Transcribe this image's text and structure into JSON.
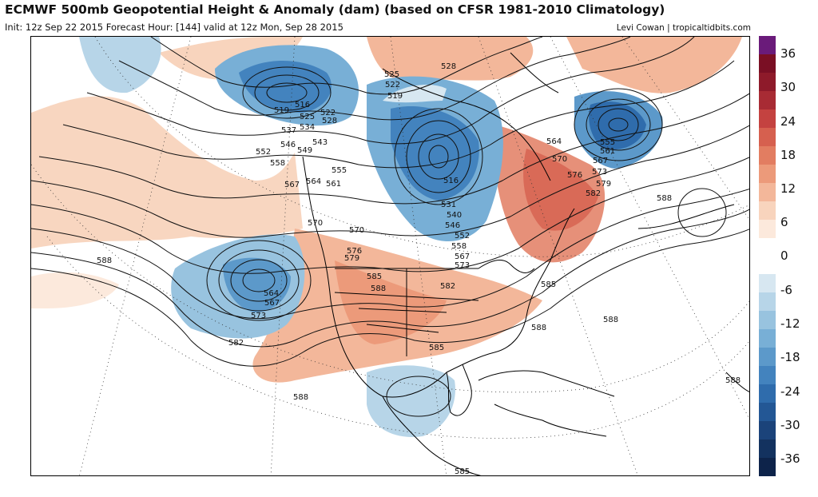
{
  "header": {
    "title": "ECMWF 500mb Geopotential Height & Anomaly (dam) (based on CFSR 1981-2010 Climatology)",
    "subtitle": "Init: 12z Sep 22 2015   Forecast Hour: [144]   valid at 12z Mon, Sep 28 2015",
    "credit": "Levi Cowan | tropicaltidbits.com"
  },
  "colorbar": {
    "labels": [
      "36",
      "30",
      "24",
      "18",
      "12",
      "6",
      "0",
      "-6",
      "-12",
      "-18",
      "-24",
      "-30",
      "-36"
    ],
    "colors": [
      "#6a1b7a",
      "#7a0f24",
      "#8e1a2a",
      "#a82b34",
      "#c44240",
      "#d6604f",
      "#e27d61",
      "#ec9a7a",
      "#f3b79a",
      "#f8d4bd",
      "#fce9dc",
      "#ffffff",
      "#ffffff",
      "#d7e7f1",
      "#b7d5e8",
      "#98c3df",
      "#78afd6",
      "#5c99ca",
      "#4383be",
      "#2f6cac",
      "#235795",
      "#1b437a",
      "#13325f",
      "#0d234a"
    ]
  },
  "contour_labels": [
    {
      "t": "525"
    },
    {
      "t": "522"
    },
    {
      "t": "519"
    },
    {
      "t": "528"
    },
    {
      "t": "516"
    },
    {
      "t": "519"
    },
    {
      "t": "522"
    },
    {
      "t": "525"
    },
    {
      "t": "528"
    },
    {
      "t": "537"
    },
    {
      "t": "534"
    },
    {
      "t": "543"
    },
    {
      "t": "546"
    },
    {
      "t": "552"
    },
    {
      "t": "549"
    },
    {
      "t": "558"
    },
    {
      "t": "555"
    },
    {
      "t": "567"
    },
    {
      "t": "564"
    },
    {
      "t": "561"
    },
    {
      "t": "516"
    },
    {
      "t": "531"
    },
    {
      "t": "540"
    },
    {
      "t": "546"
    },
    {
      "t": "552"
    },
    {
      "t": "558"
    },
    {
      "t": "567"
    },
    {
      "t": "573"
    },
    {
      "t": "570"
    },
    {
      "t": "570"
    },
    {
      "t": "576"
    },
    {
      "t": "579"
    },
    {
      "t": "585"
    },
    {
      "t": "588"
    },
    {
      "t": "582"
    },
    {
      "t": "588"
    },
    {
      "t": "564"
    },
    {
      "t": "567"
    },
    {
      "t": "573"
    },
    {
      "t": "582"
    },
    {
      "t": "564"
    },
    {
      "t": "570"
    },
    {
      "t": "567"
    },
    {
      "t": "576"
    },
    {
      "t": "573"
    },
    {
      "t": "579"
    },
    {
      "t": "582"
    },
    {
      "t": "555"
    },
    {
      "t": "561"
    },
    {
      "t": "588"
    },
    {
      "t": "585"
    },
    {
      "t": "588"
    },
    {
      "t": "588"
    },
    {
      "t": "585"
    },
    {
      "t": "588"
    },
    {
      "t": "588"
    },
    {
      "t": "585"
    }
  ]
}
